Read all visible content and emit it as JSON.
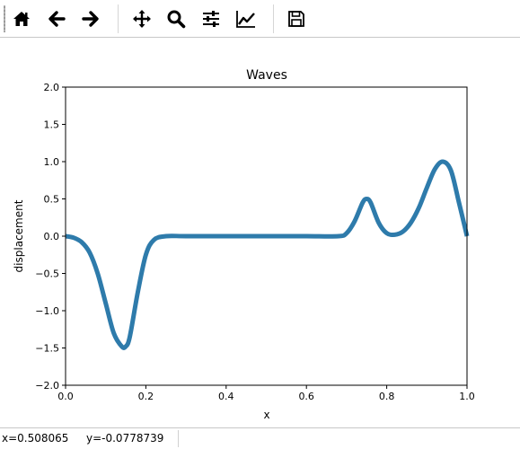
{
  "toolbar": {
    "buttons": [
      {
        "name": "home-button",
        "icon": "home-icon"
      },
      {
        "name": "back-button",
        "icon": "arrow-left-icon"
      },
      {
        "name": "forward-button",
        "icon": "arrow-right-icon"
      },
      {
        "name": "pan-button",
        "icon": "move-icon"
      },
      {
        "name": "zoom-button",
        "icon": "magnifier-icon"
      },
      {
        "name": "configure-subplots-button",
        "icon": "sliders-icon"
      },
      {
        "name": "edit-axes-button",
        "icon": "line-chart-icon"
      },
      {
        "name": "save-button",
        "icon": "floppy-disk-icon"
      }
    ]
  },
  "status": {
    "x_readout": "x=0.508065",
    "y_readout": "y=-0.0778739"
  },
  "chart_data": {
    "type": "line",
    "title": "Waves",
    "xlabel": "x",
    "ylabel": "displacement",
    "xlim": [
      0,
      1
    ],
    "ylim": [
      -2,
      2
    ],
    "x_ticks": [
      "0.0",
      "0.2",
      "0.4",
      "0.6",
      "0.8",
      "1.0"
    ],
    "y_ticks": [
      "2.0",
      "1.5",
      "1.0",
      "0.5",
      "0.0",
      "−0.5",
      "−1.0",
      "−1.5",
      "−2.0"
    ],
    "grid": false,
    "line_color": "#2e7bab",
    "series": [
      {
        "x": [
          0.0,
          0.02,
          0.04,
          0.06,
          0.08,
          0.1,
          0.12,
          0.14,
          0.15,
          0.16,
          0.18,
          0.2,
          0.22,
          0.25,
          0.3,
          0.4,
          0.5,
          0.6,
          0.68,
          0.7,
          0.72,
          0.74,
          0.75,
          0.76,
          0.78,
          0.8,
          0.82,
          0.84,
          0.86,
          0.88,
          0.9,
          0.92,
          0.94,
          0.96,
          0.98,
          1.0
        ],
        "y": [
          0.0,
          -0.02,
          -0.08,
          -0.22,
          -0.5,
          -0.9,
          -1.3,
          -1.48,
          -1.48,
          -1.35,
          -0.75,
          -0.25,
          -0.05,
          0.0,
          0.0,
          0.0,
          0.0,
          0.0,
          0.0,
          0.04,
          0.2,
          0.45,
          0.5,
          0.45,
          0.18,
          0.04,
          0.02,
          0.06,
          0.18,
          0.38,
          0.65,
          0.9,
          1.0,
          0.88,
          0.45,
          0.0
        ]
      }
    ]
  }
}
